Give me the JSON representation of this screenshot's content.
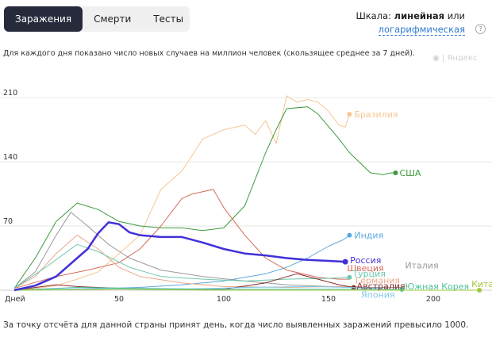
{
  "tabs": [
    {
      "label": "Заражения",
      "active": true
    },
    {
      "label": "Смерти",
      "active": false
    },
    {
      "label": "Тесты",
      "active": false
    }
  ],
  "scale": {
    "prefix": "Шкала:",
    "linear": "линейная",
    "or": "или",
    "log": "логарифмическая"
  },
  "help_icon": "question-icon",
  "subtitle": "Для каждого дня показано число новых случаев на миллион человек (скользящее среднее за 7 дней).",
  "watermark": "Яндекс",
  "footnote": "За точку отсчёта для данной страны принят день, когда число выявленных заражений превысило 1000.",
  "chart_data": {
    "type": "line",
    "xlabel": "Дней",
    "x_ticks": [
      50,
      100,
      150,
      200
    ],
    "y_ticks": [
      70,
      140,
      210
    ],
    "xlim": [
      0,
      225
    ],
    "ylim": [
      0,
      230
    ],
    "grid": "horizontal",
    "series": [
      {
        "name": "Бразилия",
        "color": "#f7c693",
        "width": 1,
        "points": [
          [
            0,
            0
          ],
          [
            10,
            2
          ],
          [
            20,
            5
          ],
          [
            30,
            12
          ],
          [
            40,
            20
          ],
          [
            50,
            40
          ],
          [
            60,
            60
          ],
          [
            70,
            110
          ],
          [
            80,
            130
          ],
          [
            90,
            165
          ],
          [
            100,
            175
          ],
          [
            110,
            180
          ],
          [
            115,
            170
          ],
          [
            120,
            185
          ],
          [
            125,
            160
          ],
          [
            130,
            212
          ],
          [
            135,
            205
          ],
          [
            140,
            208
          ],
          [
            145,
            205
          ],
          [
            150,
            195
          ],
          [
            155,
            180
          ],
          [
            158,
            178
          ],
          [
            160,
            192
          ]
        ],
        "endpoint": true
      },
      {
        "name": "США",
        "color": "#3d9a3d",
        "width": 1,
        "points": [
          [
            0,
            2
          ],
          [
            10,
            35
          ],
          [
            20,
            75
          ],
          [
            30,
            95
          ],
          [
            40,
            88
          ],
          [
            50,
            75
          ],
          [
            60,
            70
          ],
          [
            70,
            68
          ],
          [
            80,
            68
          ],
          [
            90,
            65
          ],
          [
            100,
            68
          ],
          [
            110,
            92
          ],
          [
            120,
            150
          ],
          [
            125,
            175
          ],
          [
            130,
            198
          ],
          [
            140,
            200
          ],
          [
            145,
            192
          ],
          [
            155,
            165
          ],
          [
            160,
            150
          ],
          [
            170,
            128
          ],
          [
            176,
            126
          ],
          [
            180,
            128
          ],
          [
            182,
            128
          ]
        ],
        "endpoint": true
      },
      {
        "name": "Индия",
        "color": "#5aa8e0",
        "width": 1,
        "points": [
          [
            0,
            0
          ],
          [
            30,
            1
          ],
          [
            60,
            3
          ],
          [
            80,
            6
          ],
          [
            100,
            10
          ],
          [
            110,
            14
          ],
          [
            120,
            18
          ],
          [
            130,
            25
          ],
          [
            140,
            35
          ],
          [
            150,
            48
          ],
          [
            157,
            55
          ],
          [
            160,
            60
          ]
        ],
        "endpoint": true
      },
      {
        "name": "Россия",
        "color": "#4030d8",
        "width": 2.5,
        "points": [
          [
            0,
            0
          ],
          [
            10,
            5
          ],
          [
            20,
            15
          ],
          [
            30,
            35
          ],
          [
            35,
            45
          ],
          [
            40,
            62
          ],
          [
            45,
            74
          ],
          [
            50,
            72
          ],
          [
            55,
            63
          ],
          [
            60,
            60
          ],
          [
            70,
            58
          ],
          [
            80,
            58
          ],
          [
            90,
            52
          ],
          [
            100,
            45
          ],
          [
            110,
            40
          ],
          [
            120,
            38
          ],
          [
            130,
            35
          ],
          [
            140,
            33
          ],
          [
            150,
            32
          ],
          [
            158,
            31
          ]
        ],
        "endpoint": true
      },
      {
        "name": "Италия",
        "color": "#9a9a9a",
        "width": 1,
        "points": [
          [
            0,
            2
          ],
          [
            10,
            20
          ],
          [
            20,
            60
          ],
          [
            27,
            85
          ],
          [
            35,
            70
          ],
          [
            45,
            50
          ],
          [
            55,
            35
          ],
          [
            70,
            22
          ],
          [
            90,
            15
          ],
          [
            110,
            10
          ],
          [
            130,
            6
          ],
          [
            150,
            4
          ],
          [
            170,
            3
          ],
          [
            185,
            3
          ]
        ],
        "endpoint": false
      },
      {
        "name": "Швеция",
        "color": "#d56a5a",
        "width": 1,
        "points": [
          [
            0,
            2
          ],
          [
            20,
            15
          ],
          [
            35,
            22
          ],
          [
            50,
            30
          ],
          [
            60,
            45
          ],
          [
            70,
            70
          ],
          [
            80,
            100
          ],
          [
            85,
            105
          ],
          [
            95,
            110
          ],
          [
            100,
            90
          ],
          [
            110,
            60
          ],
          [
            120,
            35
          ],
          [
            130,
            22
          ],
          [
            145,
            14
          ],
          [
            155,
            12
          ],
          [
            160,
            12
          ]
        ],
        "endpoint": false
      },
      {
        "name": "Германия",
        "color": "#e8a88a",
        "width": 1,
        "points": [
          [
            0,
            2
          ],
          [
            10,
            15
          ],
          [
            20,
            40
          ],
          [
            30,
            60
          ],
          [
            40,
            45
          ],
          [
            50,
            25
          ],
          [
            60,
            15
          ],
          [
            80,
            8
          ],
          [
            100,
            4
          ],
          [
            130,
            3
          ],
          [
            150,
            4
          ],
          [
            165,
            4
          ]
        ],
        "endpoint": false
      },
      {
        "name": "Турция",
        "color": "#6ec9b0",
        "width": 1,
        "points": [
          [
            0,
            2
          ],
          [
            15,
            25
          ],
          [
            30,
            50
          ],
          [
            40,
            42
          ],
          [
            55,
            25
          ],
          [
            70,
            15
          ],
          [
            90,
            12
          ],
          [
            110,
            10
          ],
          [
            130,
            12
          ],
          [
            150,
            13
          ],
          [
            160,
            14
          ]
        ],
        "endpoint": true
      },
      {
        "name": "Австралия",
        "color": "#8b2a2a",
        "width": 1,
        "points": [
          [
            0,
            0
          ],
          [
            20,
            6
          ],
          [
            30,
            4
          ],
          [
            60,
            1
          ],
          [
            100,
            1
          ],
          [
            120,
            8
          ],
          [
            135,
            18
          ],
          [
            145,
            12
          ],
          [
            155,
            6
          ],
          [
            162,
            3
          ]
        ],
        "endpoint": true
      },
      {
        "name": "Япония",
        "color": "#80c8e8",
        "width": 1,
        "points": [
          [
            0,
            0
          ],
          [
            40,
            2
          ],
          [
            80,
            1
          ],
          [
            110,
            3
          ],
          [
            140,
            4
          ],
          [
            160,
            3
          ],
          [
            175,
            2
          ]
        ],
        "endpoint": false
      },
      {
        "name": "Южная Корея",
        "color": "#4cbf9a",
        "width": 1,
        "points": [
          [
            0,
            0
          ],
          [
            30,
            3
          ],
          [
            60,
            2
          ],
          [
            100,
            1
          ],
          [
            150,
            1
          ],
          [
            185,
            1
          ]
        ],
        "endpoint": true
      },
      {
        "name": "Китай",
        "color": "#a0c840",
        "width": 1,
        "points": [
          [
            0,
            0
          ],
          [
            50,
            1
          ],
          [
            100,
            0
          ],
          [
            150,
            0
          ],
          [
            200,
            0
          ],
          [
            222,
            0
          ]
        ],
        "endpoint": true
      }
    ]
  }
}
